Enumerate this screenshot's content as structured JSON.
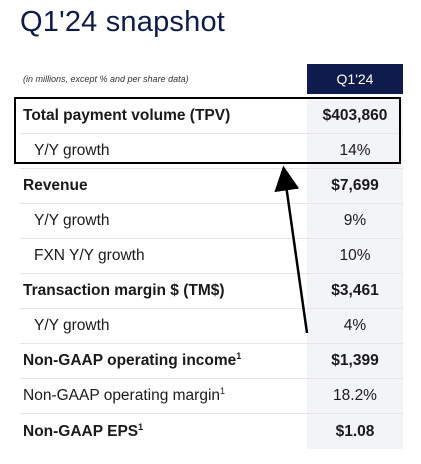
{
  "title": "Q1'24 snapshot",
  "note": "(in millions, except % and per share data)",
  "period_header": "Q1'24",
  "rows": [
    {
      "label": "Total payment volume (TPV)",
      "value": "$403,860",
      "sup": ""
    },
    {
      "label": "Y/Y growth",
      "value": "14%",
      "sup": ""
    },
    {
      "label": "Revenue",
      "value": "$7,699",
      "sup": ""
    },
    {
      "label": "Y/Y growth",
      "value": "9%",
      "sup": ""
    },
    {
      "label": "FXN Y/Y growth",
      "value": "10%",
      "sup": ""
    },
    {
      "label": "Transaction margin $ (TM$)",
      "value": "$3,461",
      "sup": ""
    },
    {
      "label": "Y/Y growth",
      "value": "4%",
      "sup": ""
    },
    {
      "label": "Non-GAAP operating income",
      "value": "$1,399",
      "sup": "1"
    },
    {
      "label": "Non-GAAP operating margin",
      "value": "18.2%",
      "sup": "1"
    },
    {
      "label": "Non-GAAP EPS",
      "value": "$1.08",
      "sup": "1"
    }
  ]
}
